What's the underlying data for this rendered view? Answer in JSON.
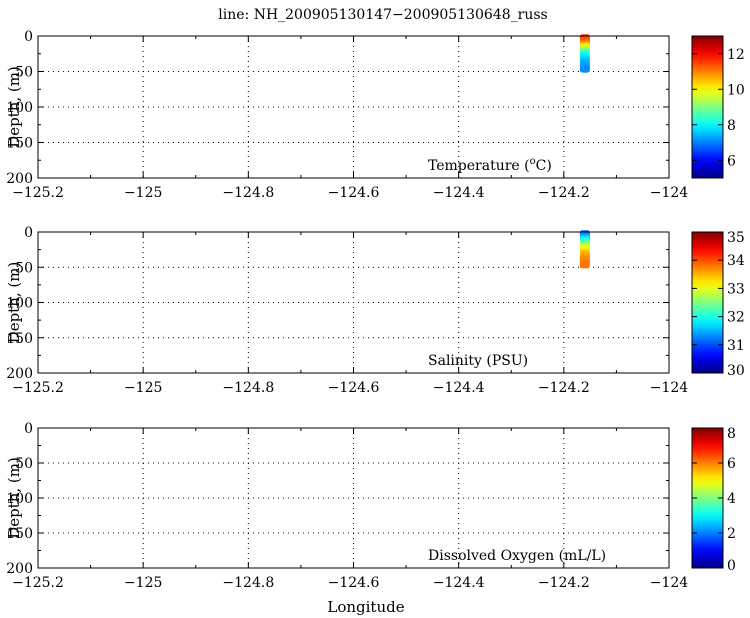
{
  "figure": {
    "title": "line: NH_200905130147−200905130648_russ",
    "xlabel": "Longitude"
  },
  "chart_data": [
    {
      "type": "scatter",
      "field_label": "Temperature (°C)",
      "field_label_main": "Temperature (",
      "field_label_sup": "o",
      "field_label_end": "C)",
      "ylabel": "Depth, (m)",
      "xlabel": "",
      "xlim": [
        -125.2,
        -124.0
      ],
      "ylim": [
        200,
        0
      ],
      "x_ticks": [
        "−125.2",
        "−125",
        "−124.8",
        "−124.6",
        "−124.4",
        "−124.2",
        "−124"
      ],
      "y_ticks": [
        "0",
        "50",
        "100",
        "150",
        "200"
      ],
      "grid": true,
      "colormap": "jet",
      "clim": [
        5,
        13
      ],
      "colorbar_ticks": [
        "6",
        "8",
        "10",
        "12"
      ],
      "profile": {
        "longitude": -124.16,
        "depth": [
          2,
          5,
          8,
          11,
          14,
          17,
          20,
          23,
          26,
          29,
          32,
          35,
          38,
          41,
          44,
          47
        ],
        "values": [
          11.6,
          11.4,
          11.2,
          10.8,
          10.2,
          9.6,
          9.0,
          8.6,
          8.2,
          7.9,
          7.7,
          7.5,
          7.4,
          7.3,
          7.2,
          7.1
        ]
      }
    },
    {
      "type": "scatter",
      "field_label": "Salinity (PSU)",
      "ylabel": "Depth, (m)",
      "xlabel": "",
      "xlim": [
        -125.2,
        -124.0
      ],
      "ylim": [
        200,
        0
      ],
      "x_ticks": [
        "−125.2",
        "−125",
        "−124.8",
        "−124.6",
        "−124.4",
        "−124.2",
        "−124"
      ],
      "y_ticks": [
        "0",
        "50",
        "100",
        "150",
        "200"
      ],
      "grid": true,
      "colormap": "jet",
      "clim": [
        30,
        35
      ],
      "colorbar_ticks": [
        "30",
        "31",
        "32",
        "33",
        "34",
        "35"
      ],
      "profile": {
        "longitude": -124.16,
        "depth": [
          2,
          5,
          8,
          11,
          14,
          17,
          20,
          23,
          26,
          29,
          32,
          35,
          38,
          41,
          44,
          47
        ],
        "values": [
          31.1,
          31.3,
          31.6,
          31.9,
          32.2,
          32.5,
          32.8,
          33.0,
          33.2,
          33.4,
          33.5,
          33.6,
          33.7,
          33.7,
          33.8,
          33.8
        ]
      }
    },
    {
      "type": "scatter",
      "field_label": "Dissolved Oxygen (mL/L)",
      "ylabel": "Depth, (m)",
      "xlabel": "Longitude",
      "xlim": [
        -125.2,
        -124.0
      ],
      "ylim": [
        200,
        0
      ],
      "x_ticks": [
        "−125.2",
        "−125",
        "−124.8",
        "−124.6",
        "−124.4",
        "−124.2",
        "−124"
      ],
      "y_ticks": [
        "0",
        "50",
        "100",
        "150",
        "200"
      ],
      "grid": true,
      "colormap": "jet",
      "clim": [
        0,
        8
      ],
      "colorbar_ticks": [
        "0",
        "2",
        "4",
        "6",
        "8"
      ],
      "profile": {
        "longitude": -124.16,
        "depth": [],
        "values": []
      }
    }
  ]
}
